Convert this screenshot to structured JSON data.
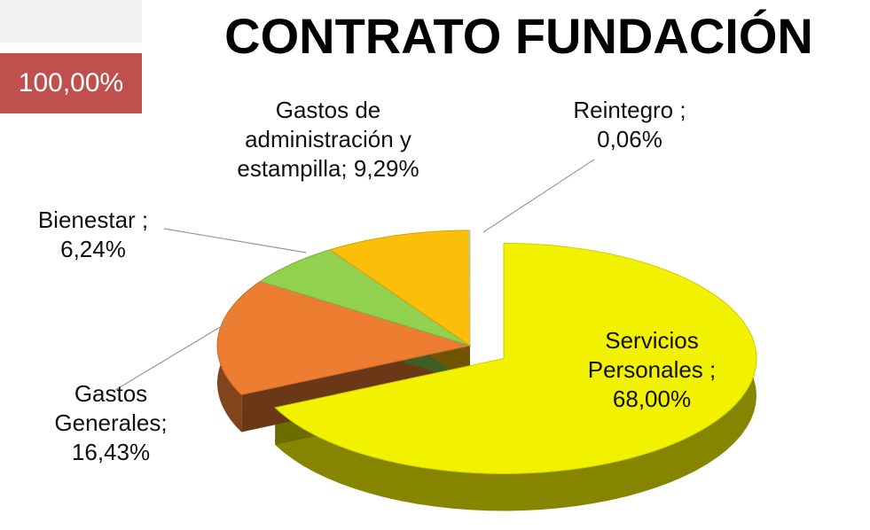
{
  "chart_data": {
    "type": "pie",
    "title": "CONTRATO FUNDACIÓN",
    "annotation": "100,00%",
    "categories": [
      "Servicios Personales ;",
      "Gastos Generales;",
      "Bienestar ;",
      "Gastos de administración y estampilla;",
      "Reintegro ;"
    ],
    "values": [
      68,
      16.43,
      6.24,
      9.29,
      0.06
    ],
    "value_labels": [
      "68,00%",
      "16,43%",
      "6,24%",
      "9,29%",
      "0,06%"
    ],
    "colors": [
      "#f2f200",
      "#ed7d31",
      "#92d050",
      "#fbbf0a",
      "#d9e8c4"
    ]
  }
}
